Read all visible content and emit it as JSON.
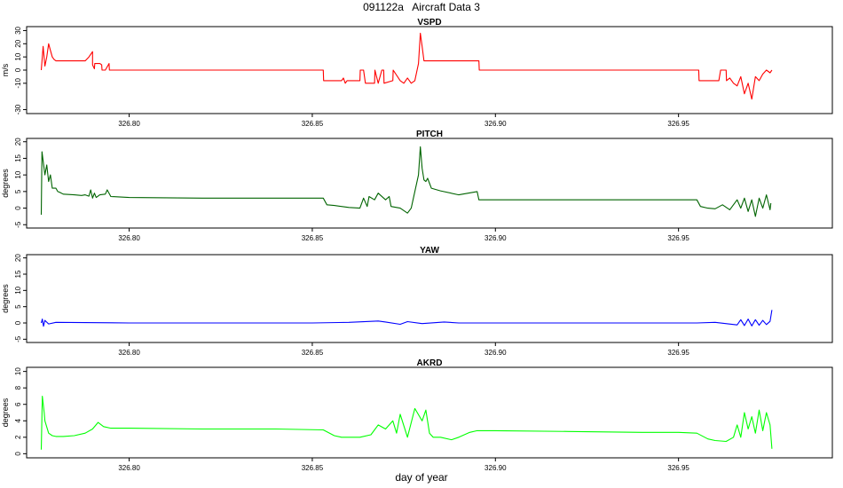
{
  "figure": {
    "title": "091122a   Aircraft Data 3",
    "xlabel": "day of year",
    "xlim": [
      326.772,
      326.992
    ],
    "xticks": [
      "326.80",
      "326.85",
      "326.90",
      "326.95"
    ],
    "xtick_values": [
      326.8,
      326.85,
      326.9,
      326.95
    ]
  },
  "chart_data": [
    {
      "type": "line",
      "title": "VSPD",
      "ylabel": "m/s",
      "color": "#ff0000",
      "ylim": [
        -33,
        33
      ],
      "yticks": [
        -30,
        -10,
        0,
        10,
        20,
        30
      ],
      "x": [
        326.776,
        326.7765,
        326.777,
        326.7775,
        326.778,
        326.7785,
        326.779,
        326.7795,
        326.78,
        326.785,
        326.788,
        326.789,
        326.79,
        326.79,
        326.7905,
        326.7906,
        326.792,
        326.7925,
        326.7926,
        326.7935,
        326.7945,
        326.7946,
        326.8,
        326.82,
        326.84,
        326.853,
        326.8531,
        326.858,
        326.8585,
        326.859,
        326.8595,
        326.863,
        326.8631,
        326.864,
        326.8645,
        326.867,
        326.8671,
        326.868,
        326.869,
        326.8695,
        326.8696,
        326.872,
        326.8721,
        326.874,
        326.875,
        326.876,
        326.877,
        326.878,
        326.879,
        326.8795,
        326.88,
        326.8805,
        326.881,
        326.885,
        326.89,
        326.8955,
        326.8956,
        326.91,
        326.93,
        326.9555,
        326.9556,
        326.961,
        326.9615,
        326.963,
        326.9631,
        326.964,
        326.965,
        326.966,
        326.967,
        326.968,
        326.969,
        326.97,
        326.971,
        326.972,
        326.973,
        326.974,
        326.975,
        326.9755
      ],
      "y": [
        0,
        18,
        3,
        10,
        20,
        15,
        10,
        8,
        7,
        7,
        7,
        10,
        14,
        4,
        1,
        5,
        5,
        4,
        0,
        0,
        5,
        0,
        0,
        0,
        0,
        0,
        -8,
        -8,
        -6,
        -10,
        -8,
        -8,
        0,
        0,
        -10,
        -10,
        0,
        -10,
        0,
        0,
        -10,
        -8,
        0,
        -8,
        -10,
        -6,
        -10,
        -8,
        5,
        28,
        18,
        7,
        7,
        7,
        7,
        7,
        0,
        0,
        0,
        0,
        -8,
        -8,
        0,
        0,
        -8,
        -6,
        -10,
        -12,
        -5,
        -18,
        -10,
        -22,
        -5,
        -8,
        -3,
        0,
        -2,
        0
      ]
    },
    {
      "type": "line",
      "title": "PITCH",
      "ylabel": "degrees",
      "color": "#006400",
      "ylim": [
        -6,
        21
      ],
      "yticks": [
        -5,
        0,
        5,
        10,
        15,
        20
      ],
      "x": [
        326.776,
        326.7762,
        326.777,
        326.7775,
        326.778,
        326.7785,
        326.779,
        326.78,
        326.7805,
        326.781,
        326.782,
        326.785,
        326.787,
        326.788,
        326.789,
        326.7895,
        326.79,
        326.7905,
        326.791,
        326.792,
        326.7935,
        326.794,
        326.795,
        326.8,
        326.82,
        326.84,
        326.853,
        326.854,
        326.856,
        326.86,
        326.863,
        326.864,
        326.865,
        326.8655,
        326.867,
        326.868,
        326.87,
        326.871,
        326.8715,
        326.874,
        326.876,
        326.877,
        326.878,
        326.879,
        326.8795,
        326.88,
        326.8805,
        326.881,
        326.8815,
        326.882,
        326.8825,
        326.885,
        326.89,
        326.895,
        326.8955,
        326.9,
        326.92,
        326.94,
        326.955,
        326.956,
        326.958,
        326.96,
        326.962,
        326.964,
        326.966,
        326.967,
        326.968,
        326.969,
        326.97,
        326.971,
        326.972,
        326.973,
        326.974,
        326.975,
        326.9752
      ],
      "y": [
        -2,
        17,
        10,
        13,
        8,
        10,
        6,
        6,
        5,
        4.8,
        4.2,
        4.0,
        3.8,
        4.0,
        3.6,
        5.5,
        3.0,
        4.5,
        3.2,
        4.0,
        4.2,
        5.5,
        3.5,
        3.2,
        3.0,
        3.0,
        3.0,
        1.0,
        0.8,
        0.2,
        0.0,
        3.0,
        0.5,
        3.5,
        2.5,
        4.5,
        2.5,
        3.5,
        0.5,
        0.0,
        -1.5,
        0.0,
        5.0,
        10.0,
        18.5,
        12.0,
        8.5,
        8.0,
        9.0,
        7.5,
        6.0,
        5.2,
        4.0,
        5.0,
        2.5,
        2.5,
        2.5,
        2.5,
        2.5,
        0.5,
        0.0,
        -0.2,
        1.0,
        -0.5,
        2.5,
        0.0,
        3.0,
        -1.0,
        2.5,
        -2.5,
        3.0,
        0.0,
        4.0,
        -0.5,
        1.5
      ]
    },
    {
      "type": "line",
      "title": "YAW",
      "ylabel": "degrees",
      "color": "#0000ff",
      "ylim": [
        -6,
        21
      ],
      "yticks": [
        -5,
        0,
        5,
        10,
        15,
        20
      ],
      "x": [
        326.776,
        326.7763,
        326.7766,
        326.777,
        326.778,
        326.78,
        326.8,
        326.82,
        326.85,
        326.86,
        326.868,
        326.87,
        326.874,
        326.876,
        326.88,
        326.886,
        326.89,
        326.9,
        326.92,
        326.94,
        326.955,
        326.96,
        326.966,
        326.967,
        326.968,
        326.969,
        326.97,
        326.971,
        326.972,
        326.973,
        326.974,
        326.975,
        326.9755
      ],
      "y": [
        0,
        1.2,
        -1.0,
        0.8,
        -0.3,
        0.2,
        0.0,
        0.0,
        0.0,
        0.2,
        0.6,
        0.3,
        -0.4,
        0.4,
        -0.2,
        0.3,
        0.0,
        0.0,
        0.0,
        0.0,
        0.0,
        0.2,
        -0.6,
        1.0,
        -0.8,
        1.2,
        -0.9,
        1.0,
        -0.7,
        0.8,
        -0.5,
        0.5,
        4.0
      ]
    },
    {
      "type": "line",
      "title": "AKRD",
      "ylabel": "degrees",
      "color": "#00ff00",
      "ylim": [
        -0.5,
        10.5
      ],
      "yticks": [
        0,
        2,
        4,
        6,
        8,
        10
      ],
      "x": [
        326.776,
        326.7763,
        326.7768,
        326.777,
        326.778,
        326.779,
        326.78,
        326.782,
        326.785,
        326.788,
        326.79,
        326.7915,
        326.793,
        326.795,
        326.8,
        326.82,
        326.84,
        326.853,
        326.856,
        326.858,
        326.86,
        326.863,
        326.866,
        326.868,
        326.87,
        326.872,
        326.873,
        326.874,
        326.876,
        326.878,
        326.88,
        326.881,
        326.882,
        326.883,
        326.885,
        326.888,
        326.89,
        326.893,
        326.895,
        326.9,
        326.92,
        326.94,
        326.95,
        326.955,
        326.958,
        326.96,
        326.963,
        326.965,
        326.966,
        326.967,
        326.968,
        326.969,
        326.97,
        326.971,
        326.972,
        326.973,
        326.974,
        326.975,
        326.9755
      ],
      "y": [
        0.5,
        7.0,
        5.0,
        4.0,
        2.5,
        2.2,
        2.1,
        2.1,
        2.2,
        2.5,
        3.0,
        3.8,
        3.3,
        3.1,
        3.1,
        3.0,
        3.0,
        2.9,
        2.2,
        2.0,
        2.0,
        2.0,
        2.3,
        3.5,
        3.0,
        4.0,
        2.5,
        4.8,
        2.0,
        5.5,
        4.0,
        5.3,
        2.5,
        2.0,
        2.0,
        1.7,
        2.0,
        2.6,
        2.8,
        2.8,
        2.7,
        2.6,
        2.6,
        2.5,
        1.8,
        1.6,
        1.5,
        2.0,
        3.5,
        2.0,
        5.0,
        3.0,
        4.5,
        2.5,
        5.3,
        2.8,
        5.0,
        3.5,
        0.6
      ]
    }
  ]
}
